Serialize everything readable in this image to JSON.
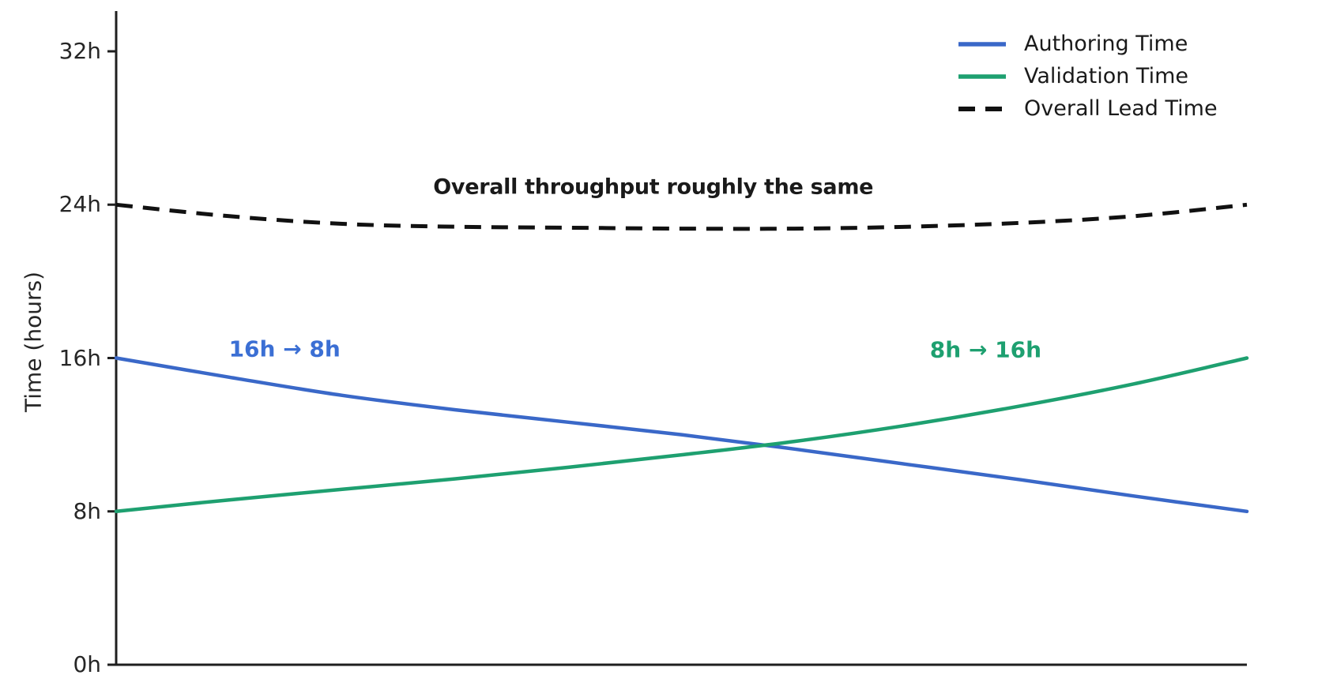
{
  "chart_data": {
    "type": "line",
    "title": "",
    "xlabel": "",
    "ylabel": "Time (hours)",
    "grid": false,
    "x": [
      0,
      0.1,
      0.2,
      0.3,
      0.4,
      0.5,
      0.6,
      0.7,
      0.8,
      0.9,
      1.0
    ],
    "xlim": [
      0,
      1
    ],
    "ylim": [
      0,
      34.1
    ],
    "yticks": [
      {
        "value": 0,
        "label": "0h"
      },
      {
        "value": 8,
        "label": "8h"
      },
      {
        "value": 16,
        "label": "16h"
      },
      {
        "value": 24,
        "label": "24h"
      },
      {
        "value": 32,
        "label": "32h"
      }
    ],
    "series": [
      {
        "name": "Authoring Time",
        "color": "#3a68c8",
        "style": "solid",
        "values": [
          16.0,
          15.0,
          14.05,
          13.3,
          12.65,
          12.0,
          11.25,
          10.45,
          9.65,
          8.8,
          8.0
        ]
      },
      {
        "name": "Validation Time",
        "color": "#1ea070",
        "style": "solid",
        "values": [
          8.0,
          8.6,
          9.15,
          9.7,
          10.3,
          10.95,
          11.65,
          12.5,
          13.5,
          14.65,
          16.0
        ]
      },
      {
        "name": "Overall Lead Time",
        "color": "#111111",
        "style": "dashed",
        "values": [
          24.0,
          23.4,
          23.0,
          22.85,
          22.8,
          22.75,
          22.75,
          22.85,
          23.05,
          23.4,
          24.0
        ]
      }
    ],
    "legend": {
      "position": "upper right"
    },
    "annotations": [
      {
        "text": "Overall throughput roughly the same",
        "color": "#1a1a1a",
        "x": 0.475,
        "y": 24.92,
        "kind": "main"
      },
      {
        "text": "16h → 8h",
        "color": "#3b6fd4",
        "x": 0.149,
        "y": 16.47,
        "kind": "side"
      },
      {
        "text": "8h → 16h",
        "color": "#1ea070",
        "x": 0.769,
        "y": 16.43,
        "kind": "side"
      }
    ]
  }
}
